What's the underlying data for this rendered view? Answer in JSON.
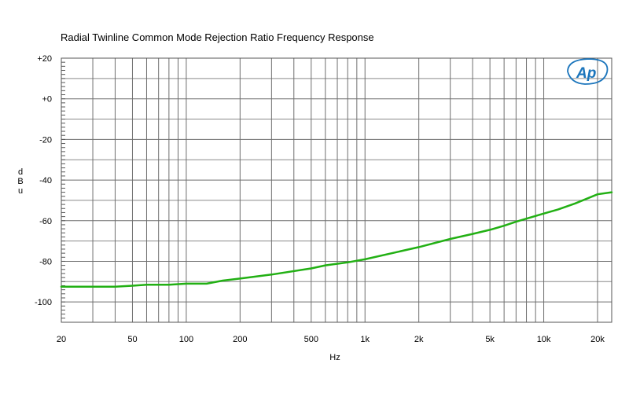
{
  "chart_data": {
    "type": "line",
    "title": "Radial Twinline Common Mode Rejection Ratio Frequency Response",
    "xlabel": "Hz",
    "ylabel": "dBu",
    "xscale": "log",
    "xlim": [
      20,
      24000
    ],
    "ylim": [
      -110,
      20
    ],
    "grid": true,
    "logo_text": "Ap",
    "x_ticks": [
      {
        "value": 20,
        "label": "20"
      },
      {
        "value": 50,
        "label": "50"
      },
      {
        "value": 100,
        "label": "100"
      },
      {
        "value": 200,
        "label": "200"
      },
      {
        "value": 500,
        "label": "500"
      },
      {
        "value": 1000,
        "label": "1k"
      },
      {
        "value": 2000,
        "label": "2k"
      },
      {
        "value": 5000,
        "label": "5k"
      },
      {
        "value": 10000,
        "label": "10k"
      },
      {
        "value": 20000,
        "label": "20k"
      }
    ],
    "y_ticks": [
      {
        "value": 20,
        "label": "+20"
      },
      {
        "value": 0,
        "label": "+0"
      },
      {
        "value": -20,
        "label": "-20"
      },
      {
        "value": -40,
        "label": "-40"
      },
      {
        "value": -60,
        "label": "-60"
      },
      {
        "value": -80,
        "label": "-80"
      },
      {
        "value": -100,
        "label": "-100"
      }
    ],
    "series": [
      {
        "color": "#22b014",
        "x": [
          20,
          30,
          40,
          50,
          60,
          80,
          100,
          130,
          160,
          200,
          300,
          500,
          600,
          800,
          1000,
          1500,
          2000,
          3000,
          4000,
          5000,
          6000,
          7000,
          8000,
          10000,
          12000,
          15000,
          20000,
          24000
        ],
        "y": [
          -92.5,
          -92.5,
          -92.5,
          -92,
          -91.5,
          -91.5,
          -91,
          -91,
          -89.5,
          -88.5,
          -86.5,
          -83.5,
          -82,
          -80.5,
          -79,
          -75.5,
          -73,
          -69,
          -66.5,
          -64.5,
          -62.5,
          -60.5,
          -59,
          -56.5,
          -54.5,
          -51.5,
          -47,
          -46
        ]
      }
    ]
  }
}
